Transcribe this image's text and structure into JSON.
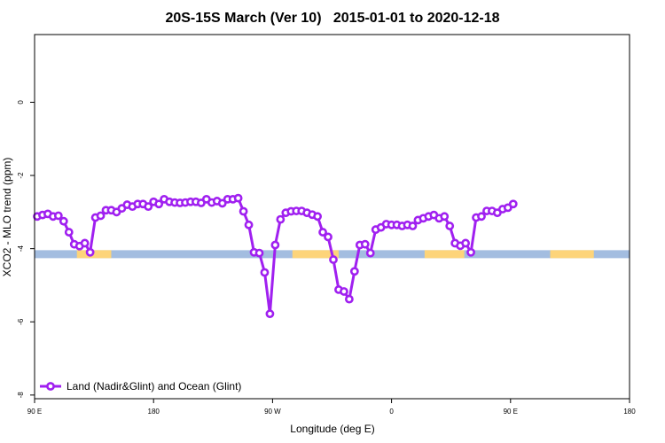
{
  "chart_data": {
    "type": "line",
    "title": "20S-15S March (Ver 10)   2015-01-01 to 2020-12-18",
    "xlabel": "Longitude (deg E)",
    "ylabel": "XCO2 - MLO trend (ppm)",
    "xlim": [
      90,
      540
    ],
    "ylim": [
      -8.1,
      1.85
    ],
    "x_ticks": [
      {
        "value": 90,
        "label": "90 E"
      },
      {
        "value": 180,
        "label": "180"
      },
      {
        "value": 270,
        "label": "90 W"
      },
      {
        "value": 360,
        "label": "0"
      },
      {
        "value": 450,
        "label": "90 E"
      },
      {
        "value": 540,
        "label": "180"
      }
    ],
    "y_ticks": [
      {
        "value": 0,
        "label": "0"
      },
      {
        "value": -2,
        "label": "-2"
      },
      {
        "value": -4,
        "label": "-4"
      },
      {
        "value": -6,
        "label": "-6"
      },
      {
        "value": -8,
        "label": "-8"
      }
    ],
    "surface_band": {
      "y": -4.15,
      "ocean_color": "#a3bde0",
      "land_color": "#fdd47a",
      "land_segments": [
        [
          122,
          148
        ],
        [
          285,
          320
        ],
        [
          385,
          415
        ],
        [
          480,
          513
        ]
      ]
    },
    "series": [
      {
        "name": "Land (Nadir&Glint) and Ocean (Glint)",
        "color": "#a020f0",
        "points": [
          [
            92,
            -3.12
          ],
          [
            96,
            -3.08
          ],
          [
            100,
            -3.05
          ],
          [
            104,
            -3.12
          ],
          [
            108,
            -3.1
          ],
          [
            112,
            -3.25
          ],
          [
            116,
            -3.55
          ],
          [
            120,
            -3.88
          ],
          [
            124,
            -3.93
          ],
          [
            128,
            -3.85
          ],
          [
            132,
            -4.1
          ],
          [
            136,
            -3.15
          ],
          [
            140,
            -3.1
          ],
          [
            144,
            -2.95
          ],
          [
            148,
            -2.95
          ],
          [
            152,
            -3.0
          ],
          [
            156,
            -2.9
          ],
          [
            160,
            -2.8
          ],
          [
            164,
            -2.85
          ],
          [
            168,
            -2.78
          ],
          [
            172,
            -2.78
          ],
          [
            176,
            -2.85
          ],
          [
            180,
            -2.72
          ],
          [
            184,
            -2.78
          ],
          [
            188,
            -2.65
          ],
          [
            192,
            -2.72
          ],
          [
            196,
            -2.74
          ],
          [
            200,
            -2.75
          ],
          [
            204,
            -2.74
          ],
          [
            208,
            -2.72
          ],
          [
            212,
            -2.72
          ],
          [
            216,
            -2.75
          ],
          [
            220,
            -2.65
          ],
          [
            224,
            -2.74
          ],
          [
            228,
            -2.7
          ],
          [
            232,
            -2.76
          ],
          [
            236,
            -2.65
          ],
          [
            240,
            -2.65
          ],
          [
            244,
            -2.62
          ],
          [
            248,
            -2.98
          ],
          [
            252,
            -3.35
          ],
          [
            256,
            -4.1
          ],
          [
            260,
            -4.12
          ],
          [
            264,
            -4.65
          ],
          [
            268,
            -5.78
          ],
          [
            272,
            -3.9
          ],
          [
            276,
            -3.2
          ],
          [
            280,
            -3.02
          ],
          [
            284,
            -2.98
          ],
          [
            288,
            -2.97
          ],
          [
            292,
            -2.97
          ],
          [
            296,
            -3.02
          ],
          [
            300,
            -3.07
          ],
          [
            304,
            -3.12
          ],
          [
            308,
            -3.55
          ],
          [
            312,
            -3.68
          ],
          [
            316,
            -4.3
          ],
          [
            320,
            -5.12
          ],
          [
            324,
            -5.17
          ],
          [
            328,
            -5.38
          ],
          [
            332,
            -4.62
          ],
          [
            336,
            -3.9
          ],
          [
            340,
            -3.88
          ],
          [
            344,
            -4.12
          ],
          [
            348,
            -3.48
          ],
          [
            352,
            -3.42
          ],
          [
            356,
            -3.33
          ],
          [
            360,
            -3.35
          ],
          [
            364,
            -3.35
          ],
          [
            368,
            -3.38
          ],
          [
            372,
            -3.35
          ],
          [
            376,
            -3.38
          ],
          [
            380,
            -3.22
          ],
          [
            384,
            -3.17
          ],
          [
            388,
            -3.12
          ],
          [
            392,
            -3.08
          ],
          [
            396,
            -3.17
          ],
          [
            400,
            -3.12
          ],
          [
            404,
            -3.38
          ],
          [
            408,
            -3.85
          ],
          [
            412,
            -3.92
          ],
          [
            416,
            -3.85
          ],
          [
            420,
            -4.1
          ],
          [
            424,
            -3.15
          ],
          [
            428,
            -3.12
          ],
          [
            432,
            -2.97
          ],
          [
            436,
            -2.97
          ],
          [
            440,
            -3.02
          ],
          [
            444,
            -2.92
          ],
          [
            448,
            -2.88
          ],
          [
            452,
            -2.78
          ]
        ]
      }
    ],
    "legend": "bottom-left",
    "grid": false
  }
}
